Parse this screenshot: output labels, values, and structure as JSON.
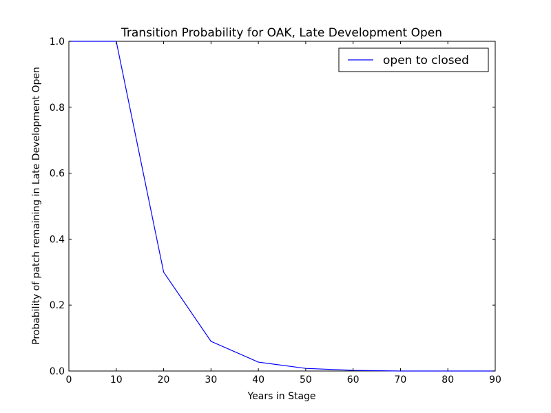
{
  "chart_data": {
    "type": "line",
    "title": "Transition Probability for OAK, Late Development Open",
    "xlabel": "Years in Stage",
    "ylabel": "Probability of patch remaining in Late Development Open",
    "xlim": [
      0,
      90
    ],
    "ylim": [
      0.0,
      1.0
    ],
    "xticks": [
      "0",
      "10",
      "20",
      "30",
      "40",
      "50",
      "60",
      "70",
      "80",
      "90"
    ],
    "yticks": [
      "0.0",
      "0.2",
      "0.4",
      "0.6",
      "0.8",
      "1.0"
    ],
    "grid": false,
    "legend_position": "top-right",
    "series": [
      {
        "name": "open to closed",
        "color": "#0000ff",
        "x": [
          0,
          10,
          20,
          30,
          40,
          50,
          60,
          70,
          80,
          90
        ],
        "y": [
          1.0,
          1.0,
          0.3,
          0.09,
          0.027,
          0.008,
          0.002,
          0.0,
          0.0,
          0.0
        ]
      }
    ]
  }
}
